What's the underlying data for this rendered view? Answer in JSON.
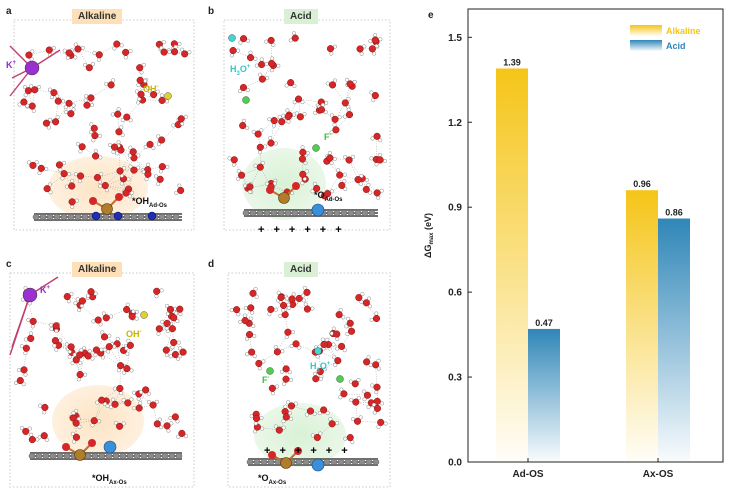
{
  "panels": {
    "a": {
      "letter": "a",
      "title": "Alkaline",
      "ion": "K",
      "ion_sup": "+",
      "species": "OH",
      "species_sup": "-",
      "site": "*OH",
      "site_sub": "Ad-Os"
    },
    "b": {
      "letter": "b",
      "title": "Acid",
      "ion": "H",
      "ion_sub": "3",
      "ion_mid": "O",
      "ion_sup": "+",
      "species": "F",
      "species_sup": "-",
      "site": "*O",
      "site_sub": "Ad-Os"
    },
    "c": {
      "letter": "c",
      "title": "Alkaline",
      "ion": "K",
      "ion_sup": "+",
      "species": "OH",
      "species_sup": "-",
      "site": "*OH",
      "site_sub": "Ax-Os"
    },
    "d": {
      "letter": "d",
      "title": "Acid",
      "ion": "H",
      "ion_sub": "3",
      "ion_mid": "O",
      "ion_sup": "+",
      "species": "F",
      "species_sup": "-",
      "site": "*O",
      "site_sub": "Ax-Os"
    },
    "plus": "+"
  },
  "colors": {
    "alkaline": "#f5c518",
    "acid": "#2f86b8",
    "oxygen": "#d62728",
    "hydrogen": "#ffffff",
    "metal": "#b07d2b",
    "nitrogen": "#1f2fb0",
    "carbon": "#707070",
    "potassium": "#9b30d0",
    "fluorine": "#4fce4f",
    "hydronium": "#40d6d6",
    "alk_title_bg": "#fde0b8",
    "acid_title_bg": "#d9f0d4",
    "alk_halo": "#fde4c4",
    "acid_halo": "#d9f1d6"
  },
  "chart_data": {
    "panel_letter": "e",
    "type": "bar",
    "categories": [
      "Ad-OS",
      "Ax-OS"
    ],
    "series": [
      {
        "name": "Alkaline",
        "values": [
          1.39,
          0.96
        ]
      },
      {
        "name": "Acid",
        "values": [
          0.47,
          0.86
        ]
      }
    ],
    "value_labels": [
      [
        "1.39",
        "0.96"
      ],
      [
        "0.47",
        "0.86"
      ]
    ],
    "ylabel": "ΔG",
    "ylabel_sub": "max",
    "ylabel_unit": "(eV)",
    "ylim": [
      0,
      1.6
    ],
    "yticks": [
      "0.0",
      "0.3",
      "0.6",
      "0.9",
      "1.2",
      "1.5"
    ],
    "ytick_values": [
      0,
      0.3,
      0.6,
      0.9,
      1.2,
      1.5
    ],
    "legend_position": "top-right",
    "grid": false
  }
}
